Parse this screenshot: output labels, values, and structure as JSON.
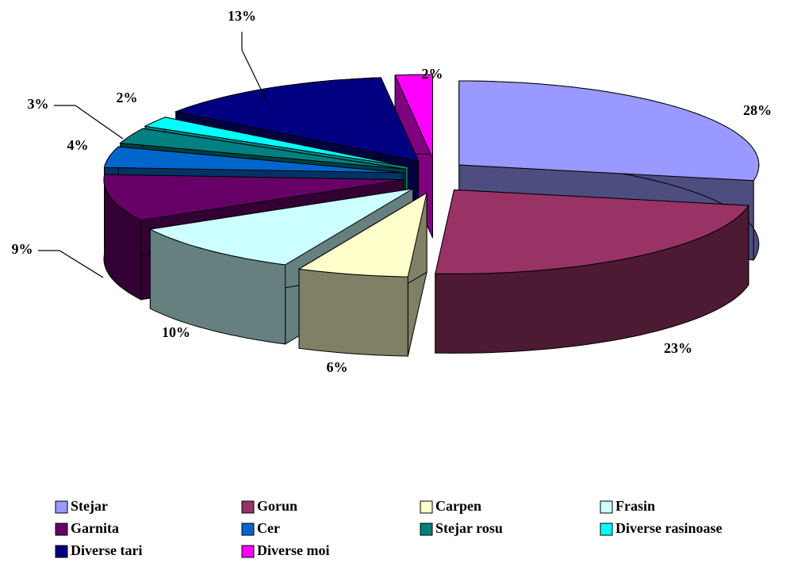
{
  "chart_data": {
    "type": "pie3d",
    "categories": [
      "Stejar",
      "Gorun",
      "Carpen",
      "Frasin",
      "Garnita",
      "Cer",
      "Stejar rosu",
      "Diverse rasinoase",
      "Diverse tari",
      "Diverse moi"
    ],
    "values": [
      28,
      23,
      6,
      10,
      9,
      4,
      3,
      2,
      13,
      2
    ],
    "value_labels": [
      "28%",
      "23%",
      "6%",
      "10%",
      "9%",
      "4%",
      "3%",
      "2%",
      "13%",
      "2%"
    ],
    "colors": [
      "#9999ff",
      "#993366",
      "#ffffcc",
      "#ccffff",
      "#660066",
      "#0066cc",
      "#008080",
      "#00ffff",
      "#000080",
      "#ff00ff"
    ],
    "legend": "bottom"
  }
}
